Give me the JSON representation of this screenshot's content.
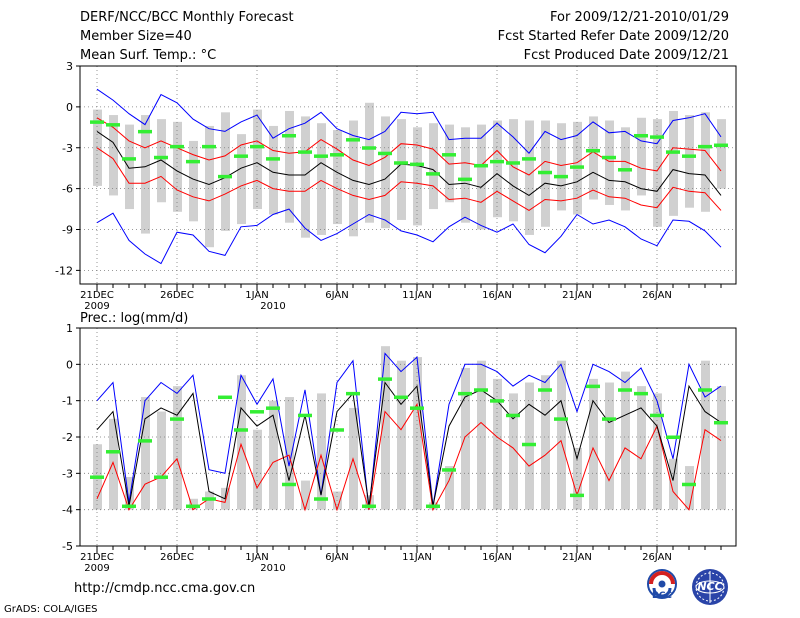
{
  "header": {
    "title": "DERF/NCC/BCC Monthly Forecast",
    "member_size": "Member Size=40",
    "variable": "Mean Surf. Temp.: °C",
    "forecast_period": "For 2009/12/21-2010/01/29",
    "start_date": "Fcst Started Refer Date 2009/12/20",
    "produced_date": "Fcst Produced Date 2009/12/21"
  },
  "footer": {
    "url": "http://cmdp.ncc.cma.gov.cn",
    "credit": "GrADS: COLA/IGES",
    "logo_bcc": "BCC",
    "logo_ncc": "NCC"
  },
  "colors": {
    "envelope": "#0000ff",
    "percentile": "#ff0000",
    "median": "#000000",
    "observed": "#33ee33",
    "box": "#d0d0d0"
  },
  "chart_data": [
    {
      "type": "box-plume",
      "title": "Mean Surf. Temp.: °C",
      "xlabel": "",
      "ylabel": "°C",
      "ylim": [
        -13,
        3
      ],
      "yticks": [
        3,
        0,
        -3,
        -6,
        -9,
        -12
      ],
      "x_tick_days": [
        1,
        6,
        11,
        16,
        21,
        26,
        31,
        36
      ],
      "x_tick_labels": [
        "21DEC",
        "26DEC",
        "1JAN",
        "6JAN",
        "11JAN",
        "16JAN",
        "21JAN",
        "26JAN"
      ],
      "x_year_labels": [
        {
          "day": 1,
          "label": "2009"
        },
        {
          "day": 12,
          "label": "2010"
        }
      ],
      "days": 40,
      "series": [
        {
          "name": "max",
          "values": [
            1.3,
            0.5,
            -0.5,
            -1.3,
            0.9,
            0.3,
            -0.9,
            -1.6,
            -1.8,
            -1.1,
            -0.6,
            -2.3,
            -1.6,
            -1.2,
            -0.4,
            -1.6,
            -2.1,
            -2.4,
            -1.8,
            -0.4,
            -0.5,
            -0.4,
            -2.4,
            -2.3,
            -2.3,
            -1.2,
            -2.2,
            -3.4,
            -1.8,
            -2.4,
            -2.1,
            -1.1,
            -1.9,
            -1.8,
            -2.5,
            -2.7,
            -1.0,
            -0.8,
            -0.5,
            -2.2
          ]
        },
        {
          "name": "p75",
          "values": [
            -0.8,
            -1.5,
            -2.5,
            -3.0,
            -2.5,
            -3.0,
            -3.5,
            -3.9,
            -3.6,
            -2.8,
            -2.5,
            -3.2,
            -3.4,
            -3.3,
            -2.4,
            -3.1,
            -3.9,
            -4.3,
            -3.7,
            -2.7,
            -2.8,
            -3.1,
            -4.2,
            -4.1,
            -4.3,
            -3.2,
            -4.4,
            -5.0,
            -4.0,
            -4.3,
            -4.1,
            -3.3,
            -4.0,
            -4.0,
            -4.5,
            -4.7,
            -3.0,
            -3.1,
            -3.2,
            -4.7
          ]
        },
        {
          "name": "median",
          "values": [
            -1.8,
            -2.6,
            -4.5,
            -4.4,
            -3.9,
            -4.7,
            -5.3,
            -5.7,
            -5.2,
            -4.5,
            -4.1,
            -4.8,
            -5.0,
            -5.0,
            -4.1,
            -4.8,
            -5.4,
            -5.7,
            -5.3,
            -4.2,
            -4.3,
            -4.6,
            -5.7,
            -5.6,
            -5.9,
            -4.9,
            -5.8,
            -6.5,
            -5.6,
            -5.8,
            -5.5,
            -4.8,
            -5.4,
            -5.5,
            -6.0,
            -6.2,
            -4.6,
            -4.9,
            -5.0,
            -6.5
          ]
        },
        {
          "name": "p25",
          "values": [
            -3.0,
            -3.8,
            -5.6,
            -5.6,
            -5.1,
            -6.1,
            -6.6,
            -6.9,
            -6.4,
            -5.8,
            -5.4,
            -6.0,
            -6.2,
            -6.2,
            -5.4,
            -6.0,
            -6.5,
            -6.8,
            -6.5,
            -5.5,
            -5.6,
            -5.8,
            -6.8,
            -6.7,
            -7.0,
            -6.2,
            -6.9,
            -7.6,
            -6.8,
            -6.9,
            -6.7,
            -6.1,
            -6.6,
            -6.7,
            -7.2,
            -7.4,
            -5.9,
            -6.2,
            -6.3,
            -7.6
          ]
        },
        {
          "name": "min",
          "values": [
            -8.5,
            -7.8,
            -9.8,
            -10.8,
            -11.5,
            -9.2,
            -9.4,
            -10.6,
            -10.9,
            -8.8,
            -8.7,
            -7.9,
            -7.5,
            -8.9,
            -9.8,
            -9.3,
            -8.6,
            -7.9,
            -8.3,
            -9.1,
            -9.4,
            -9.9,
            -8.8,
            -8.1,
            -8.7,
            -9.2,
            -8.6,
            -10.1,
            -10.7,
            -9.5,
            -7.9,
            -8.6,
            -8.3,
            -8.8,
            -9.7,
            -10.2,
            -8.3,
            -8.4,
            -9.1,
            -10.3
          ]
        },
        {
          "name": "box_top",
          "values": [
            -0.2,
            -0.6,
            -1.3,
            -0.6,
            -0.9,
            -1.1,
            -2.5,
            -1.4,
            -0.4,
            -2.0,
            -0.2,
            -1.4,
            -0.3,
            -0.7,
            -1.2,
            -1.7,
            -1.0,
            0.3,
            -0.7,
            -0.9,
            -1.5,
            -1.2,
            -1.3,
            -1.5,
            -1.3,
            -1.0,
            -0.9,
            -1.0,
            -1.0,
            -1.2,
            -1.1,
            -0.7,
            -1.0,
            -1.5,
            -0.8,
            -0.9,
            -0.3,
            -0.6,
            -0.4,
            -0.9
          ]
        },
        {
          "name": "box_bottom",
          "values": [
            -5.8,
            -6.5,
            -7.5,
            -9.3,
            -7.0,
            -7.7,
            -8.4,
            -10.3,
            -9.1,
            -8.6,
            -7.5,
            -7.9,
            -8.5,
            -9.6,
            -9.4,
            -8.6,
            -9.5,
            -8.5,
            -8.9,
            -8.3,
            -8.7,
            -7.5,
            -7.0,
            -8.5,
            -9.0,
            -8.1,
            -8.4,
            -9.4,
            -8.8,
            -7.6,
            -7.9,
            -6.8,
            -7.2,
            -7.6,
            -6.5,
            -8.8,
            -8.0,
            -7.4,
            -7.7,
            -6.0
          ]
        },
        {
          "name": "observed",
          "values": [
            -1.1,
            -1.3,
            -3.8,
            -1.8,
            -3.7,
            -2.9,
            -4.0,
            -2.9,
            -5.1,
            -3.6,
            -2.9,
            -3.8,
            -2.1,
            -3.3,
            -3.6,
            -3.5,
            -2.4,
            -3.0,
            -3.4,
            -4.1,
            -4.2,
            -4.9,
            -3.5,
            -5.3,
            -4.3,
            -4.0,
            -4.1,
            -3.8,
            -4.8,
            -5.1,
            -4.4,
            -3.2,
            -3.7,
            -4.6,
            -2.1,
            -2.2,
            -3.3,
            -3.6,
            -2.9,
            -2.8
          ]
        }
      ]
    },
    {
      "type": "box-plume",
      "title": "Prec.: log(mm/d)",
      "xlabel": "",
      "ylabel": "log(mm/d)",
      "ylim": [
        -5,
        1
      ],
      "yticks": [
        1,
        0,
        -1,
        -2,
        -3,
        -4,
        -5
      ],
      "x_tick_days": [
        1,
        6,
        11,
        16,
        21,
        26,
        31,
        36
      ],
      "x_tick_labels": [
        "21DEC",
        "26DEC",
        "1JAN",
        "6JAN",
        "11JAN",
        "16JAN",
        "21JAN",
        "26JAN"
      ],
      "x_year_labels": [
        {
          "day": 1,
          "label": "2009"
        },
        {
          "day": 12,
          "label": "2010"
        }
      ],
      "days": 40,
      "series": [
        {
          "name": "max",
          "values": [
            -1.0,
            -0.5,
            -3.8,
            -1.0,
            -0.5,
            -0.8,
            -0.3,
            -2.9,
            -3.0,
            -0.3,
            -1.1,
            -0.4,
            -2.8,
            -0.7,
            -3.6,
            -0.5,
            0.1,
            -4.0,
            0.3,
            -0.2,
            0.2,
            -3.9,
            -1.1,
            0.0,
            0.0,
            -0.2,
            -0.6,
            -0.3,
            -0.5,
            0.0,
            -1.3,
            0.0,
            -0.2,
            -0.5,
            -0.1,
            -1.0,
            -2.6,
            0.0,
            -0.9,
            -0.6
          ]
        },
        {
          "name": "median",
          "values": [
            -1.8,
            -1.3,
            -3.9,
            -1.5,
            -1.2,
            -1.4,
            -0.8,
            -3.5,
            -3.7,
            -1.2,
            -1.7,
            -1.4,
            -3.2,
            -1.4,
            -3.6,
            -1.3,
            -0.8,
            -3.9,
            -0.5,
            -1.1,
            -0.6,
            -3.9,
            -1.7,
            -0.9,
            -0.7,
            -1.0,
            -1.5,
            -1.1,
            -1.4,
            -1.0,
            -2.6,
            -1.0,
            -1.6,
            -1.4,
            -1.2,
            -1.7,
            -3.2,
            -0.6,
            -1.3,
            -1.6
          ]
        },
        {
          "name": "p25",
          "values": [
            -3.7,
            -2.7,
            -4.0,
            -3.3,
            -3.1,
            -2.6,
            -4.0,
            -3.7,
            -3.8,
            -2.2,
            -3.4,
            -2.7,
            -2.5,
            -4.0,
            -2.5,
            -4.0,
            -2.6,
            -4.0,
            -1.3,
            -1.8,
            -1.1,
            -4.0,
            -3.2,
            -2.0,
            -1.6,
            -2.0,
            -2.3,
            -2.8,
            -2.5,
            -2.1,
            -3.6,
            -2.3,
            -3.2,
            -2.3,
            -2.6,
            -1.7,
            -3.5,
            -4.0,
            -1.8,
            -2.1
          ]
        },
        {
          "name": "box_top",
          "values": [
            -2.2,
            -1.5,
            -3.1,
            -0.9,
            -1.3,
            -0.6,
            -3.7,
            -3.5,
            -3.4,
            -0.3,
            -1.8,
            -1.0,
            -0.9,
            -3.2,
            -0.8,
            -3.5,
            -1.2,
            -3.6,
            0.5,
            0.1,
            0.2,
            -3.8,
            -2.8,
            -0.1,
            0.1,
            -0.4,
            -0.8,
            -0.5,
            -0.3,
            0.1,
            -2.3,
            -0.4,
            -0.5,
            -0.2,
            -0.6,
            -0.8,
            -2.6,
            -2.8,
            0.1,
            -0.6
          ]
        },
        {
          "name": "observed",
          "values": [
            -3.1,
            -2.4,
            -3.9,
            -2.1,
            -3.1,
            -1.5,
            -3.9,
            -3.7,
            -0.9,
            -1.8,
            -1.3,
            -1.2,
            -3.3,
            -1.4,
            -3.7,
            -1.8,
            -0.8,
            -3.9,
            -0.4,
            -0.9,
            -1.2,
            -3.9,
            -2.9,
            -0.8,
            -0.7,
            -1.0,
            -1.4,
            -2.2,
            -0.7,
            -1.5,
            -3.6,
            -0.6,
            -1.5,
            -0.7,
            -0.8,
            -1.4,
            -2.0,
            -3.3,
            -0.7,
            -1.6
          ]
        }
      ]
    }
  ]
}
